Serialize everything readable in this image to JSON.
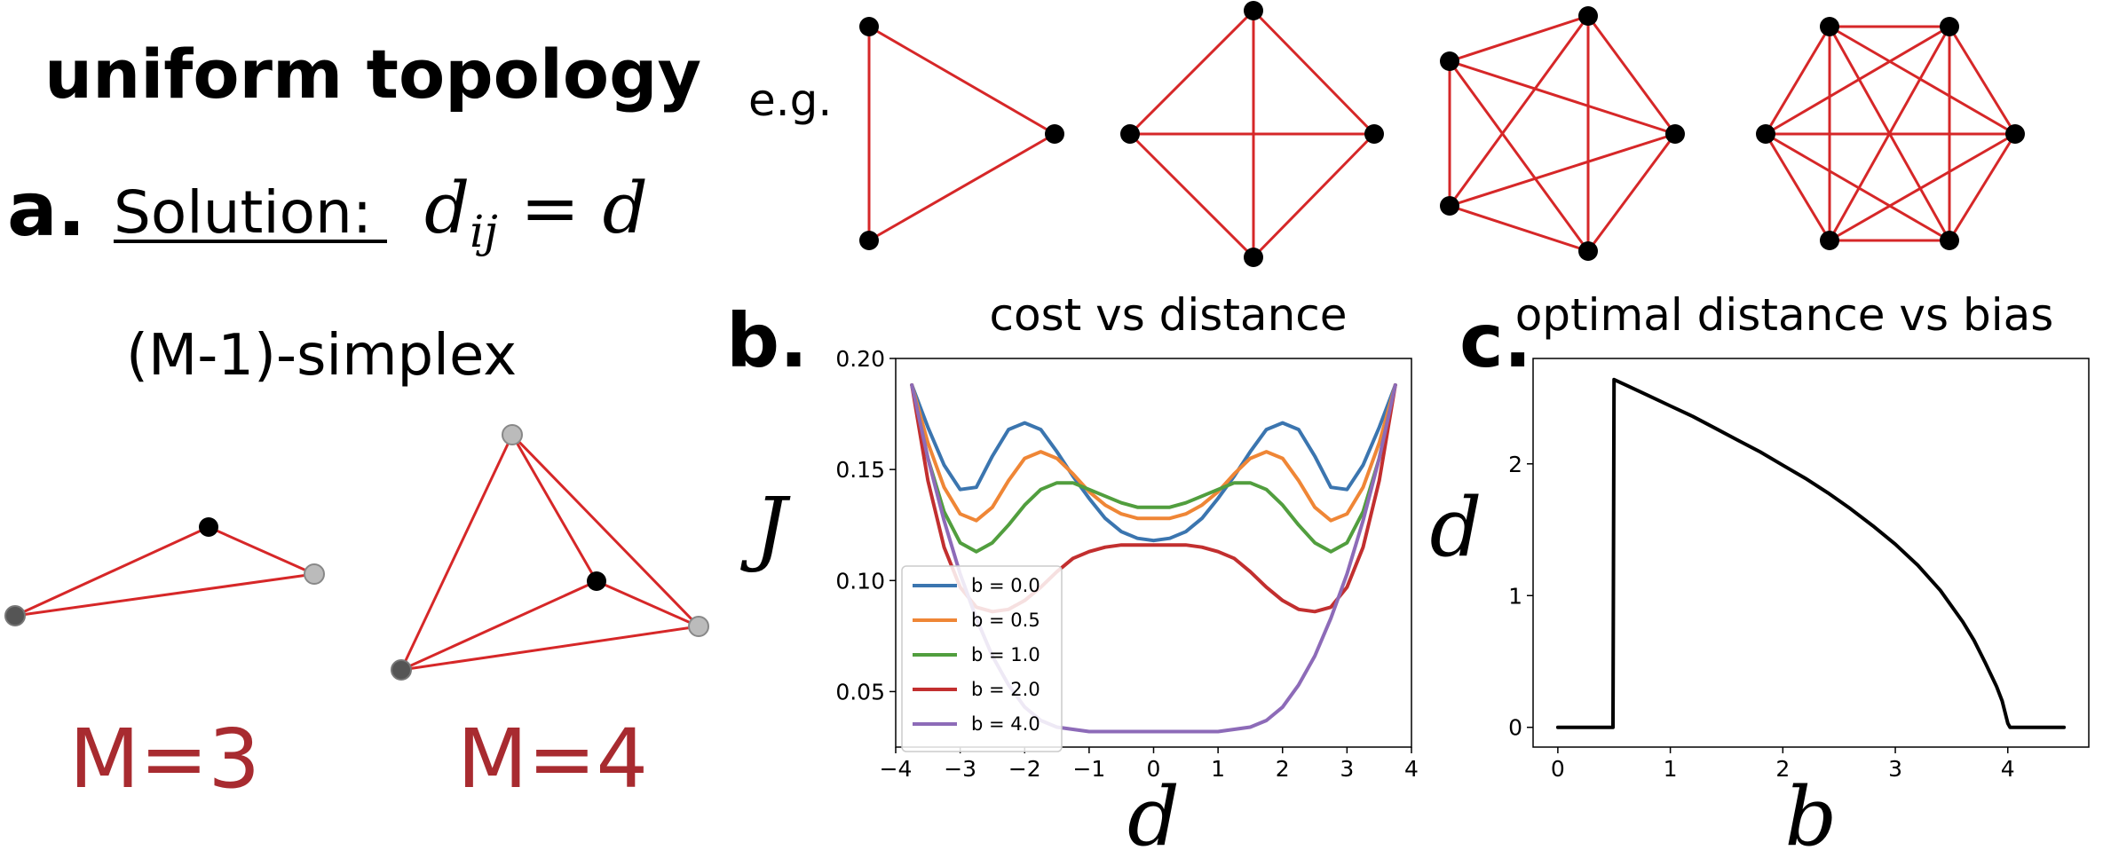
{
  "panel_a": {
    "title": "uniform topology",
    "label": "a.",
    "solution_label": "Solution:",
    "equation": "d_ij = d",
    "simplex_label": "(M-1)-simplex",
    "m3_label": "M=3",
    "m4_label": "M=4",
    "example_label": "e.g."
  },
  "panel_b": {
    "label": "b."
  },
  "panel_c": {
    "label": "c."
  },
  "colors": {
    "edge": "#d62728",
    "label_red": "#a82b30",
    "series": [
      "#3b75af",
      "#ef8636",
      "#519e3e",
      "#c22f2f",
      "#8d6bb8"
    ]
  },
  "chart_data": [
    {
      "type": "line",
      "title": "cost vs distance",
      "xlabel": "d",
      "ylabel": "J",
      "xlim": [
        -4,
        4
      ],
      "ylim": [
        0.025,
        0.2
      ],
      "xticks": [
        -4,
        -3,
        -2,
        -1,
        0,
        1,
        2,
        3,
        4
      ],
      "yticks": [
        0.05,
        0.1,
        0.15,
        0.2
      ],
      "ytick_labels": [
        "0.05",
        "0.10",
        "0.15",
        "0.20"
      ],
      "legend_position": "lower-left",
      "series": [
        {
          "name": "b = 0.0",
          "x": [
            -3.75,
            -3.5,
            -3.25,
            -3,
            -2.75,
            -2.5,
            -2.25,
            -2,
            -1.75,
            -1.5,
            -1.25,
            -1,
            -0.75,
            -0.5,
            -0.25,
            0,
            0.25,
            0.5,
            0.75,
            1,
            1.25,
            1.5,
            1.75,
            2,
            2.25,
            2.5,
            2.75,
            3,
            3.25,
            3.5,
            3.75
          ],
          "y": [
            0.188,
            0.169,
            0.152,
            0.141,
            0.142,
            0.156,
            0.168,
            0.171,
            0.168,
            0.158,
            0.147,
            0.137,
            0.128,
            0.122,
            0.119,
            0.118,
            0.119,
            0.122,
            0.128,
            0.137,
            0.147,
            0.158,
            0.168,
            0.171,
            0.168,
            0.156,
            0.142,
            0.141,
            0.152,
            0.169,
            0.188
          ]
        },
        {
          "name": "b = 0.5",
          "x": [
            -3.75,
            -3.5,
            -3.25,
            -3,
            -2.75,
            -2.5,
            -2.25,
            -2,
            -1.75,
            -1.5,
            -1.25,
            -1,
            -0.75,
            -0.5,
            -0.25,
            0,
            0.25,
            0.5,
            0.75,
            1,
            1.25,
            1.5,
            1.75,
            2,
            2.25,
            2.5,
            2.75,
            3,
            3.25,
            3.5,
            3.75
          ],
          "y": [
            0.188,
            0.162,
            0.142,
            0.13,
            0.127,
            0.133,
            0.145,
            0.155,
            0.158,
            0.155,
            0.148,
            0.14,
            0.134,
            0.13,
            0.128,
            0.128,
            0.128,
            0.13,
            0.134,
            0.14,
            0.148,
            0.155,
            0.158,
            0.155,
            0.145,
            0.133,
            0.127,
            0.13,
            0.142,
            0.162,
            0.188
          ]
        },
        {
          "name": "b = 1.0",
          "x": [
            -3.75,
            -3.5,
            -3.25,
            -3,
            -2.75,
            -2.5,
            -2.25,
            -2,
            -1.75,
            -1.5,
            -1.25,
            -1,
            -0.75,
            -0.5,
            -0.25,
            0,
            0.25,
            0.5,
            0.75,
            1,
            1.25,
            1.5,
            1.75,
            2,
            2.25,
            2.5,
            2.75,
            3,
            3.25,
            3.5,
            3.75
          ],
          "y": [
            0.188,
            0.155,
            0.131,
            0.117,
            0.113,
            0.117,
            0.125,
            0.134,
            0.141,
            0.144,
            0.144,
            0.141,
            0.138,
            0.135,
            0.133,
            0.133,
            0.133,
            0.135,
            0.138,
            0.141,
            0.144,
            0.144,
            0.141,
            0.134,
            0.125,
            0.117,
            0.113,
            0.117,
            0.131,
            0.155,
            0.188
          ]
        },
        {
          "name": "b = 2.0",
          "x": [
            -3.75,
            -3.5,
            -3.25,
            -3,
            -2.75,
            -2.5,
            -2.25,
            -2,
            -1.75,
            -1.5,
            -1.25,
            -1,
            -0.75,
            -0.5,
            -0.25,
            0,
            0.25,
            0.5,
            0.75,
            1,
            1.25,
            1.5,
            1.75,
            2,
            2.25,
            2.5,
            2.75,
            3,
            3.25,
            3.5,
            3.75
          ],
          "y": [
            0.188,
            0.145,
            0.115,
            0.097,
            0.088,
            0.086,
            0.087,
            0.091,
            0.097,
            0.104,
            0.11,
            0.113,
            0.115,
            0.116,
            0.116,
            0.116,
            0.116,
            0.116,
            0.115,
            0.113,
            0.11,
            0.104,
            0.097,
            0.091,
            0.087,
            0.086,
            0.088,
            0.097,
            0.115,
            0.145,
            0.188
          ]
        },
        {
          "name": "b = 4.0",
          "x": [
            -3.75,
            -3.5,
            -3.25,
            -3,
            -2.75,
            -2.5,
            -2.25,
            -2,
            -1.75,
            -1.5,
            -1.25,
            -1,
            -0.75,
            -0.5,
            -0.25,
            0,
            0.25,
            0.5,
            0.75,
            1,
            1.25,
            1.5,
            1.75,
            2,
            2.25,
            2.5,
            2.75,
            3,
            3.25,
            3.5,
            3.75
          ],
          "y": [
            0.188,
            0.155,
            0.127,
            0.103,
            0.083,
            0.066,
            0.053,
            0.043,
            0.037,
            0.034,
            0.033,
            0.032,
            0.032,
            0.032,
            0.032,
            0.032,
            0.032,
            0.032,
            0.032,
            0.032,
            0.033,
            0.034,
            0.037,
            0.043,
            0.053,
            0.066,
            0.083,
            0.103,
            0.127,
            0.155,
            0.188
          ]
        }
      ]
    },
    {
      "type": "line",
      "title": "optimal distance vs bias",
      "xlabel": "b",
      "ylabel": "d",
      "xlim": [
        -0.22,
        4.72
      ],
      "ylim": [
        -0.15,
        2.8
      ],
      "xticks": [
        0,
        1,
        2,
        3,
        4
      ],
      "yticks": [
        0,
        1,
        2
      ],
      "series": [
        {
          "x": [
            0,
            0.49,
            0.5,
            0.6,
            0.8,
            1.0,
            1.2,
            1.4,
            1.6,
            1.8,
            2.0,
            2.2,
            2.4,
            2.6,
            2.8,
            3.0,
            3.2,
            3.4,
            3.6,
            3.7,
            3.8,
            3.9,
            3.95,
            4.0,
            4.02,
            4.5
          ],
          "y": [
            0,
            0,
            2.64,
            2.6,
            2.52,
            2.44,
            2.36,
            2.27,
            2.18,
            2.09,
            1.99,
            1.89,
            1.78,
            1.66,
            1.53,
            1.39,
            1.23,
            1.04,
            0.8,
            0.66,
            0.49,
            0.31,
            0.2,
            0.03,
            0,
            0
          ]
        }
      ]
    }
  ]
}
